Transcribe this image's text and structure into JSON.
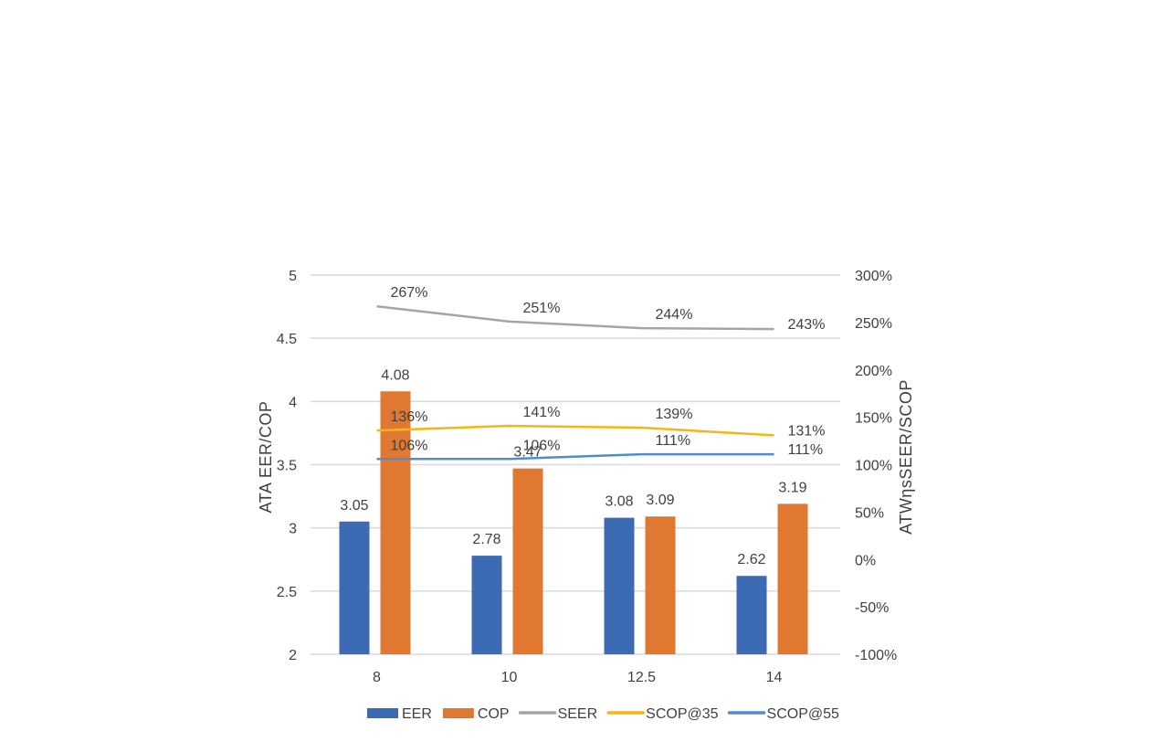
{
  "chart_data": {
    "type": "bar",
    "categories": [
      "8",
      "10",
      "12.5",
      "14"
    ],
    "series": [
      {
        "name": "EER",
        "kind": "bar",
        "axis": "left",
        "color": "#3D6BB3",
        "values": [
          3.05,
          2.78,
          3.08,
          2.62
        ],
        "labels": [
          "3.05",
          "2.78",
          "3.08",
          "2.62"
        ]
      },
      {
        "name": "COP",
        "kind": "bar",
        "axis": "left",
        "color": "#E07832",
        "values": [
          4.08,
          3.47,
          3.09,
          3.19
        ],
        "labels": [
          "4.08",
          "3.47",
          "3.09",
          "3.19"
        ]
      },
      {
        "name": "SEER",
        "kind": "line",
        "axis": "right",
        "color": "#A5A5A5",
        "values": [
          267,
          251,
          244,
          243
        ],
        "labels": [
          "267%",
          "251%",
          "244%",
          "243%"
        ]
      },
      {
        "name": "SCOP@35",
        "kind": "line",
        "axis": "right",
        "color": "#F5B516",
        "values": [
          136,
          141,
          139,
          131
        ],
        "labels": [
          "136%",
          "141%",
          "139%",
          "131%"
        ]
      },
      {
        "name": "SCOP@55",
        "kind": "line",
        "axis": "right",
        "color": "#4E8FCB",
        "values": [
          106,
          106,
          111,
          111
        ],
        "labels": [
          "106%",
          "106%",
          "111%",
          "111%"
        ]
      }
    ],
    "ylabel": "ATA EER/COP",
    "y2label": "ATWηsSEER/SCOP",
    "ylim": [
      2,
      5
    ],
    "y2lim": [
      -100,
      300
    ],
    "yticks": [
      "2",
      "2.5",
      "3",
      "3.5",
      "4",
      "4.5",
      "5"
    ],
    "y2ticks": [
      "-100%",
      "-50%",
      "0%",
      "50%",
      "100%",
      "150%",
      "200%",
      "250%",
      "300%"
    ],
    "grid": true,
    "legend": "bottom"
  }
}
